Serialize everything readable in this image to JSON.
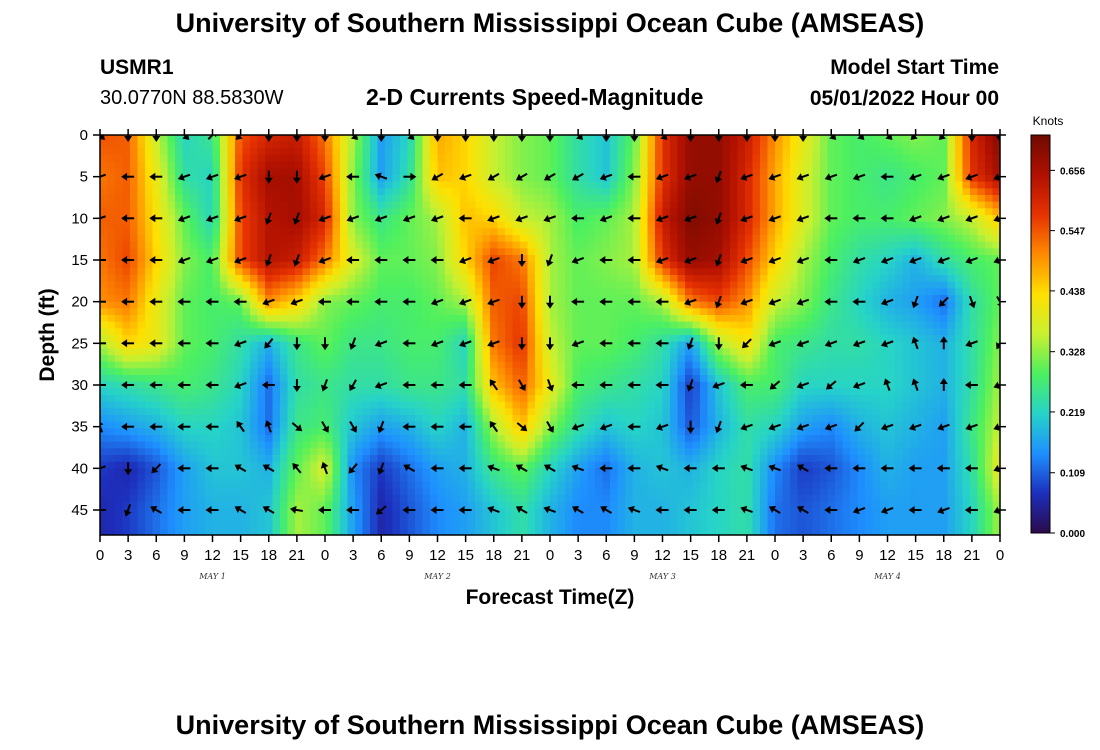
{
  "header": {
    "title": "University of Southern Mississippi Ocean Cube (AMSEAS)",
    "station_id": "USMR1",
    "station_coords": "30.0770N  88.5830W",
    "subtitle": "2-D Currents Speed-Magnitude",
    "model_start_label": "Model Start Time",
    "model_start_value": "05/01/2022 Hour 00"
  },
  "footer": {
    "title": "University of Southern Mississippi Ocean Cube (AMSEAS)"
  },
  "chart_data": {
    "type": "heatmap",
    "title": "2-D Currents Speed-Magnitude",
    "xlabel": "Forecast Time(Z)",
    "ylabel": "Depth (ft)",
    "x_tick_labels": [
      "0",
      "3",
      "6",
      "9",
      "12",
      "15",
      "18",
      "21",
      "0",
      "3",
      "6",
      "9",
      "12",
      "15",
      "18",
      "21",
      "0",
      "3",
      "6",
      "9",
      "12",
      "15",
      "18",
      "21",
      "0",
      "3",
      "6",
      "9",
      "12",
      "15",
      "18",
      "21",
      "0"
    ],
    "x_hours": [
      0,
      3,
      6,
      9,
      12,
      15,
      18,
      21,
      24,
      27,
      30,
      33,
      36,
      39,
      42,
      45,
      48,
      51,
      54,
      57,
      60,
      63,
      66,
      69,
      72,
      75,
      78,
      81,
      84,
      87,
      90,
      93,
      96
    ],
    "xlim_hours": [
      0,
      96
    ],
    "day_labels": [
      {
        "label": "MAY 1",
        "hour": 12
      },
      {
        "label": "MAY 2",
        "hour": 36
      },
      {
        "label": "MAY 3",
        "hour": 60
      },
      {
        "label": "MAY 4",
        "hour": 84
      }
    ],
    "y_tick_labels": [
      "0",
      "5",
      "10",
      "15",
      "20",
      "25",
      "30",
      "35",
      "40",
      "45"
    ],
    "y_depths_ft": [
      0,
      5,
      10,
      15,
      20,
      25,
      30,
      35,
      40,
      45
    ],
    "ylim_ft": [
      0,
      48
    ],
    "colorbar": {
      "title": "Knots",
      "range": [
        0.0,
        0.72
      ],
      "tick_values": [
        0.0,
        0.109,
        0.219,
        0.328,
        0.438,
        0.547,
        0.656
      ],
      "tick_labels": [
        "0.000",
        "0.109",
        "0.219",
        "0.328",
        "0.438",
        "0.547",
        "0.656"
      ],
      "colors": [
        "#2a0a4a",
        "#1d2fbd",
        "#1e90ff",
        "#26d3c8",
        "#4cf060",
        "#c9f030",
        "#ffe000",
        "#ff8a00",
        "#e63200",
        "#b01000",
        "#6e0a00"
      ]
    },
    "speed_knots": [
      [
        0.55,
        0.54,
        0.36,
        0.22,
        0.26,
        0.55,
        0.6,
        0.62,
        0.52,
        0.34,
        0.16,
        0.22,
        0.48,
        0.44,
        0.36,
        0.32,
        0.3,
        0.24,
        0.2,
        0.3,
        0.58,
        0.68,
        0.68,
        0.62,
        0.5,
        0.4,
        0.3,
        0.28,
        0.3,
        0.32,
        0.3,
        0.6,
        0.7
      ],
      [
        0.52,
        0.54,
        0.4,
        0.24,
        0.22,
        0.58,
        0.66,
        0.66,
        0.56,
        0.32,
        0.16,
        0.24,
        0.46,
        0.44,
        0.36,
        0.32,
        0.3,
        0.24,
        0.2,
        0.32,
        0.58,
        0.68,
        0.68,
        0.6,
        0.48,
        0.38,
        0.3,
        0.28,
        0.26,
        0.28,
        0.3,
        0.58,
        0.66
      ],
      [
        0.54,
        0.54,
        0.42,
        0.3,
        0.22,
        0.56,
        0.64,
        0.66,
        0.6,
        0.32,
        0.26,
        0.3,
        0.34,
        0.46,
        0.44,
        0.36,
        0.34,
        0.28,
        0.3,
        0.34,
        0.62,
        0.7,
        0.68,
        0.6,
        0.48,
        0.38,
        0.3,
        0.28,
        0.28,
        0.3,
        0.32,
        0.36,
        0.46
      ],
      [
        0.52,
        0.56,
        0.44,
        0.32,
        0.28,
        0.56,
        0.64,
        0.62,
        0.52,
        0.38,
        0.3,
        0.3,
        0.32,
        0.44,
        0.56,
        0.52,
        0.34,
        0.3,
        0.32,
        0.34,
        0.58,
        0.68,
        0.66,
        0.56,
        0.44,
        0.34,
        0.28,
        0.24,
        0.22,
        0.18,
        0.24,
        0.28,
        0.3
      ],
      [
        0.5,
        0.52,
        0.4,
        0.3,
        0.28,
        0.3,
        0.5,
        0.44,
        0.32,
        0.3,
        0.28,
        0.28,
        0.3,
        0.34,
        0.54,
        0.56,
        0.34,
        0.3,
        0.3,
        0.3,
        0.34,
        0.52,
        0.56,
        0.5,
        0.36,
        0.32,
        0.26,
        0.22,
        0.18,
        0.16,
        0.12,
        0.24,
        0.3
      ],
      [
        0.34,
        0.44,
        0.4,
        0.3,
        0.28,
        0.24,
        0.18,
        0.26,
        0.3,
        0.26,
        0.26,
        0.28,
        0.28,
        0.22,
        0.52,
        0.58,
        0.36,
        0.3,
        0.3,
        0.28,
        0.24,
        0.16,
        0.34,
        0.42,
        0.28,
        0.26,
        0.24,
        0.24,
        0.22,
        0.2,
        0.18,
        0.24,
        0.32
      ],
      [
        0.22,
        0.24,
        0.26,
        0.28,
        0.26,
        0.22,
        0.12,
        0.24,
        0.26,
        0.24,
        0.24,
        0.26,
        0.26,
        0.24,
        0.46,
        0.54,
        0.4,
        0.28,
        0.26,
        0.24,
        0.22,
        0.08,
        0.2,
        0.28,
        0.28,
        0.22,
        0.22,
        0.22,
        0.22,
        0.2,
        0.18,
        0.24,
        0.34
      ],
      [
        0.14,
        0.16,
        0.18,
        0.22,
        0.22,
        0.2,
        0.12,
        0.26,
        0.28,
        0.2,
        0.16,
        0.18,
        0.22,
        0.18,
        0.34,
        0.46,
        0.32,
        0.24,
        0.2,
        0.22,
        0.2,
        0.1,
        0.18,
        0.24,
        0.22,
        0.16,
        0.14,
        0.18,
        0.2,
        0.18,
        0.16,
        0.26,
        0.36
      ],
      [
        0.08,
        0.06,
        0.1,
        0.16,
        0.2,
        0.2,
        0.18,
        0.3,
        0.38,
        0.14,
        0.08,
        0.12,
        0.16,
        0.18,
        0.26,
        0.3,
        0.22,
        0.16,
        0.12,
        0.18,
        0.2,
        0.18,
        0.22,
        0.24,
        0.14,
        0.08,
        0.1,
        0.14,
        0.18,
        0.16,
        0.16,
        0.24,
        0.4
      ],
      [
        0.06,
        0.08,
        0.12,
        0.16,
        0.18,
        0.18,
        0.2,
        0.34,
        0.3,
        0.16,
        0.06,
        0.1,
        0.14,
        0.16,
        0.2,
        0.24,
        0.18,
        0.14,
        0.14,
        0.18,
        0.18,
        0.2,
        0.22,
        0.24,
        0.12,
        0.1,
        0.12,
        0.14,
        0.16,
        0.16,
        0.16,
        0.22,
        0.34
      ]
    ],
    "current_direction_deg": [
      [
        135,
        180,
        180,
        135,
        45,
        225,
        180,
        180,
        180,
        135,
        180,
        135,
        180,
        180,
        180,
        180,
        180,
        135,
        180,
        180,
        135,
        180,
        180,
        180,
        180,
        180,
        135,
        135,
        135,
        225,
        225,
        180,
        180
      ],
      [
        250,
        270,
        270,
        250,
        250,
        250,
        180,
        180,
        250,
        270,
        290,
        90,
        240,
        250,
        240,
        240,
        240,
        240,
        250,
        270,
        250,
        250,
        200,
        250,
        250,
        250,
        250,
        250,
        270,
        250,
        250,
        250,
        250
      ],
      [
        250,
        270,
        270,
        250,
        250,
        250,
        200,
        200,
        250,
        250,
        250,
        250,
        250,
        270,
        250,
        250,
        250,
        270,
        250,
        270,
        250,
        250,
        200,
        250,
        250,
        250,
        270,
        270,
        270,
        250,
        250,
        250,
        250
      ],
      [
        270,
        270,
        270,
        250,
        250,
        250,
        200,
        200,
        250,
        270,
        270,
        270,
        270,
        250,
        250,
        180,
        200,
        250,
        270,
        270,
        250,
        250,
        200,
        250,
        250,
        250,
        270,
        250,
        250,
        250,
        250,
        250,
        250
      ],
      [
        270,
        270,
        270,
        270,
        270,
        270,
        250,
        250,
        270,
        270,
        270,
        270,
        250,
        250,
        250,
        180,
        180,
        270,
        270,
        270,
        270,
        250,
        200,
        250,
        250,
        250,
        270,
        270,
        250,
        200,
        225,
        160,
        150
      ],
      [
        270,
        270,
        270,
        270,
        270,
        250,
        220,
        180,
        180,
        200,
        250,
        270,
        250,
        250,
        250,
        180,
        180,
        250,
        270,
        270,
        270,
        200,
        180,
        225,
        250,
        250,
        250,
        250,
        250,
        340,
        0,
        250,
        210
      ],
      [
        270,
        270,
        270,
        270,
        270,
        250,
        270,
        180,
        200,
        210,
        250,
        270,
        270,
        270,
        325,
        150,
        160,
        270,
        270,
        270,
        270,
        200,
        250,
        270,
        230,
        250,
        230,
        250,
        340,
        340,
        0,
        270,
        250
      ],
      [
        340,
        270,
        270,
        270,
        270,
        325,
        340,
        130,
        150,
        150,
        200,
        270,
        270,
        270,
        325,
        130,
        150,
        250,
        250,
        270,
        250,
        180,
        200,
        250,
        250,
        250,
        250,
        225,
        250,
        250,
        250,
        250,
        250
      ],
      [
        250,
        180,
        225,
        270,
        270,
        300,
        300,
        320,
        340,
        220,
        200,
        300,
        270,
        270,
        290,
        300,
        300,
        290,
        270,
        270,
        290,
        270,
        270,
        290,
        290,
        300,
        270,
        270,
        270,
        270,
        270,
        270,
        250
      ],
      [
        270,
        200,
        300,
        270,
        270,
        300,
        300,
        280,
        270,
        270,
        230,
        270,
        270,
        270,
        290,
        300,
        290,
        300,
        300,
        290,
        270,
        270,
        270,
        290,
        300,
        300,
        270,
        250,
        250,
        270,
        250,
        270,
        250
      ]
    ]
  }
}
